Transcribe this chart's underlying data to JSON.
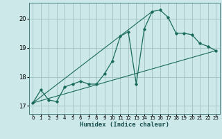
{
  "xlabel": "Humidex (Indice chaleur)",
  "background_color": "#cce8e8",
  "grid_color": "#99bbbb",
  "line_color": "#1a6b5a",
  "xlim": [
    -0.5,
    23.5
  ],
  "ylim": [
    16.72,
    20.55
  ],
  "yticks": [
    17,
    18,
    19,
    20
  ],
  "xticks": [
    0,
    1,
    2,
    3,
    4,
    5,
    6,
    7,
    8,
    9,
    10,
    11,
    12,
    13,
    14,
    15,
    16,
    17,
    18,
    19,
    20,
    21,
    22,
    23
  ],
  "series1_x": [
    0,
    1,
    2,
    3,
    4,
    5,
    6,
    7,
    8,
    9,
    10,
    11,
    12,
    13,
    14,
    15,
    16,
    17,
    18,
    19,
    20,
    21,
    22,
    23
  ],
  "series1_y": [
    17.1,
    17.55,
    17.2,
    17.15,
    17.65,
    17.75,
    17.85,
    17.75,
    17.75,
    18.1,
    18.55,
    19.4,
    19.55,
    17.75,
    19.65,
    20.25,
    20.3,
    20.05,
    19.5,
    19.5,
    19.45,
    19.15,
    19.05,
    18.9
  ],
  "series2_x": [
    0,
    23
  ],
  "series2_y": [
    17.1,
    18.9
  ],
  "series3_x": [
    0,
    15
  ],
  "series3_y": [
    17.1,
    20.25
  ]
}
